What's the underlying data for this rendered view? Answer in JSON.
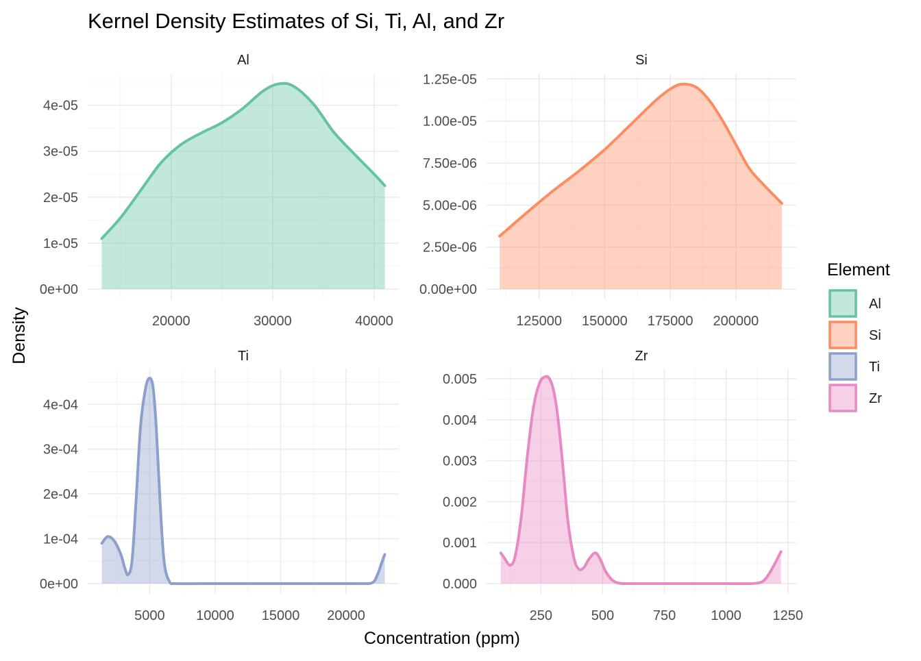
{
  "chart_data": {
    "type": "area",
    "title": "Kernel Density Estimates of Si, Ti, Al, and Zr",
    "xlabel": "Concentration (ppm)",
    "ylabel": "Density",
    "legend": {
      "title": "Element",
      "position": "right",
      "entries": [
        {
          "label": "Al",
          "color": "#66c2a5"
        },
        {
          "label": "Si",
          "color": "#fc8d62"
        },
        {
          "label": "Ti",
          "color": "#8da0cb"
        },
        {
          "label": "Zr",
          "color": "#e78ac3"
        }
      ]
    },
    "grid": true,
    "panels": [
      {
        "name": "Al",
        "color": "#66c2a5",
        "xlim": [
          11770,
          42430
        ],
        "ylim": [
          -2.23e-06,
          4.68e-05
        ],
        "x_ticks": [
          20000,
          30000,
          40000
        ],
        "x_tick_labels": [
          "20000",
          "30000",
          "40000"
        ],
        "y_ticks": [
          0,
          1e-05,
          2e-05,
          3e-05,
          4e-05
        ],
        "y_tick_labels": [
          "0e+00",
          "1e-05",
          "2e-05",
          "3e-05",
          "4e-05"
        ],
        "x": [
          13150,
          15000,
          17000,
          19000,
          21000,
          23000,
          25000,
          27000,
          29000,
          30500,
          32000,
          34000,
          36000,
          38000,
          40000,
          41050
        ],
        "y": [
          1.1e-05,
          1.55e-05,
          2.15e-05,
          2.75e-05,
          3.15e-05,
          3.4e-05,
          3.62e-05,
          3.92e-05,
          4.3e-05,
          4.46e-05,
          4.42e-05,
          4.03e-05,
          3.42e-05,
          2.95e-05,
          2.5e-05,
          2.25e-05
        ]
      },
      {
        "name": "Si",
        "color": "#fc8d62",
        "xlim": [
          105000,
          223000
        ],
        "ylim": [
          -6.1e-07,
          1.28e-05
        ],
        "x_ticks": [
          125000,
          150000,
          175000,
          200000
        ],
        "x_tick_labels": [
          "125000",
          "150000",
          "175000",
          "200000"
        ],
        "y_ticks": [
          0,
          2.5e-06,
          5e-06,
          7.5e-06,
          1e-05,
          1.25e-05
        ],
        "y_tick_labels": [
          "0.00e+00",
          "2.50e-06",
          "5.00e-06",
          "7.50e-06",
          "1.00e-05",
          "1.25e-05"
        ],
        "x": [
          110000,
          120000,
          130000,
          140000,
          150000,
          160000,
          170000,
          176000,
          180000,
          185000,
          190000,
          195000,
          200000,
          205000,
          210000,
          217500
        ],
        "y": [
          3.15e-06,
          4.5e-06,
          5.8e-06,
          7e-06,
          8.3e-06,
          9.8e-06,
          1.13e-05,
          1.2e-05,
          1.22e-05,
          1.2e-05,
          1.12e-05,
          1e-05,
          8.6e-06,
          7.2e-06,
          6.3e-06,
          5.1e-06
        ]
      },
      {
        "name": "Ti",
        "color": "#8da0cb",
        "xlim": [
          269,
          24025
        ],
        "ylim": [
          -2.3e-05,
          0.00048
        ],
        "x_ticks": [
          5000,
          10000,
          15000,
          20000
        ],
        "x_tick_labels": [
          "5000",
          "10000",
          "15000",
          "20000"
        ],
        "y_ticks": [
          0,
          0.0001,
          0.0002,
          0.0003,
          0.0004
        ],
        "y_tick_labels": [
          "0e+00",
          "1e-04",
          "2e-04",
          "3e-04",
          "4e-04"
        ],
        "x": [
          1350,
          1800,
          2300,
          2800,
          3100,
          3350,
          3650,
          3950,
          4300,
          4650,
          4950,
          5250,
          5500,
          5800,
          6100,
          6500,
          7000,
          9000,
          12000,
          15000,
          18000,
          21000,
          22000,
          22400,
          22700,
          22950
        ],
        "y": [
          9e-05,
          0.000105,
          9.5e-05,
          6.5e-05,
          3.5e-05,
          2e-05,
          5e-05,
          0.00018,
          0.00035,
          0.00043,
          0.000458,
          0.00044,
          0.00035,
          0.00018,
          5e-05,
          5e-06,
          0,
          0,
          0,
          0,
          0,
          0,
          2e-06,
          2e-05,
          4.5e-05,
          6.5e-05
        ]
      },
      {
        "name": "Zr",
        "color": "#e78ac3",
        "xlim": [
          30,
          1284
        ],
        "ylim": [
          -0.00025,
          0.00525
        ],
        "x_ticks": [
          250,
          500,
          750,
          1000,
          1250
        ],
        "x_tick_labels": [
          "250",
          "500",
          "750",
          "1000",
          "1250"
        ],
        "y_ticks": [
          0,
          0.001,
          0.002,
          0.003,
          0.004,
          0.005
        ],
        "y_tick_labels": [
          "0.000",
          "0.001",
          "0.002",
          "0.003",
          "0.004",
          "0.005"
        ],
        "x": [
          88,
          105,
          125,
          145,
          170,
          195,
          220,
          245,
          268,
          285,
          302,
          320,
          340,
          360,
          385,
          405,
          425,
          445,
          470,
          490,
          510,
          535,
          555,
          575,
          600,
          700,
          800,
          900,
          1000,
          1100,
          1140,
          1160,
          1180,
          1200,
          1222
        ],
        "y": [
          0.00075,
          0.0006,
          0.00045,
          0.00065,
          0.0016,
          0.0031,
          0.0043,
          0.0049,
          0.00505,
          0.005,
          0.0047,
          0.004,
          0.0028,
          0.0015,
          0.0006,
          0.00035,
          0.0004,
          0.0006,
          0.00075,
          0.0006,
          0.00032,
          0.00011,
          3e-05,
          5e-06,
          0,
          0,
          0,
          0,
          0,
          0,
          3e-05,
          0.00012,
          0.0003,
          0.00052,
          0.00078
        ]
      }
    ]
  }
}
